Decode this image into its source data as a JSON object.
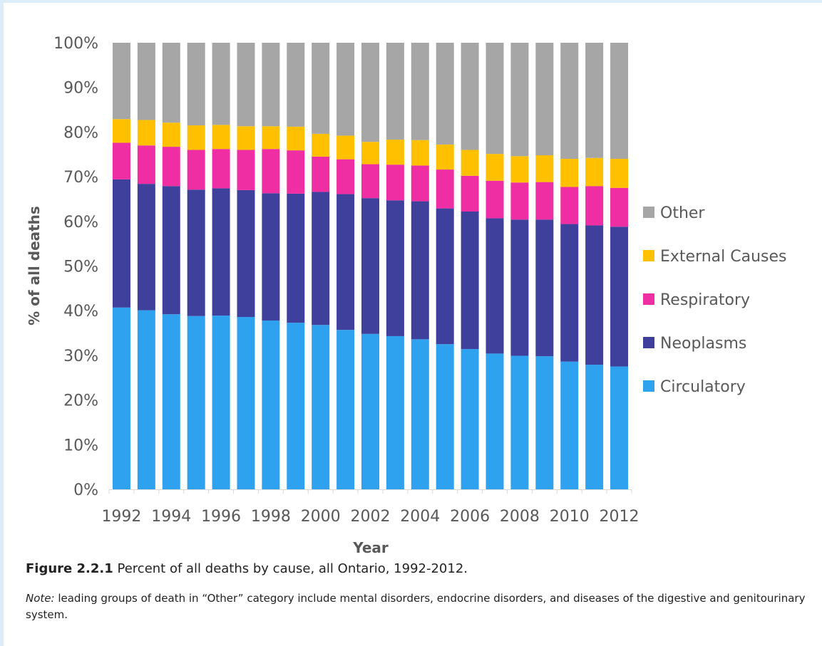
{
  "figure": {
    "label": "Figure 2.2.1",
    "caption": "Percent of all deaths by cause, all Ontario, 1992-2012.",
    "note_label": "Note:",
    "note_text": "leading groups of death in “Other” category include mental disorders, endocrine disorders, and diseases of the digestive and genitourinary system."
  },
  "chart_data": {
    "type": "bar",
    "stacked": true,
    "title": "",
    "xlabel": "Year",
    "ylabel": "% of all deaths",
    "ylim": [
      0,
      100
    ],
    "y_ticks": [
      "0%",
      "10%",
      "20%",
      "30%",
      "40%",
      "50%",
      "60%",
      "70%",
      "80%",
      "90%",
      "100%"
    ],
    "categories": [
      "1992",
      "1993",
      "1994",
      "1995",
      "1996",
      "1997",
      "1998",
      "1999",
      "2000",
      "2001",
      "2002",
      "2003",
      "2004",
      "2005",
      "2006",
      "2007",
      "2008",
      "2009",
      "2010",
      "2011",
      "2012"
    ],
    "x_tick_labels": [
      "1992",
      "1994",
      "1996",
      "1998",
      "2000",
      "2002",
      "2004",
      "2006",
      "2008",
      "2010",
      "2012"
    ],
    "legend_position": "right",
    "grid": false,
    "series": [
      {
        "name": "Circulatory",
        "color": "#2ea2ee",
        "values": [
          40.7,
          40.1,
          39.2,
          38.8,
          38.9,
          38.6,
          37.8,
          37.3,
          36.8,
          35.7,
          34.8,
          34.3,
          33.6,
          32.5,
          31.4,
          30.4,
          29.9,
          29.8,
          28.6,
          27.9,
          27.5
        ]
      },
      {
        "name": "Neoplasms",
        "color": "#3f3f9c",
        "values": [
          28.7,
          28.3,
          28.7,
          28.3,
          28.5,
          28.4,
          28.5,
          28.9,
          29.8,
          30.4,
          30.4,
          30.4,
          30.9,
          30.4,
          30.8,
          30.3,
          30.5,
          30.6,
          30.8,
          31.2,
          31.3
        ]
      },
      {
        "name": "Respiratory",
        "color": "#ee2ea2",
        "values": [
          8.2,
          8.6,
          8.8,
          8.9,
          8.8,
          9.0,
          9.9,
          9.7,
          7.9,
          7.8,
          7.6,
          8.0,
          8.0,
          8.7,
          8.0,
          8.4,
          8.3,
          8.4,
          8.3,
          8.8,
          8.7
        ]
      },
      {
        "name": "External Causes",
        "color": "#ffc000",
        "values": [
          5.3,
          5.7,
          5.4,
          5.5,
          5.4,
          5.3,
          5.1,
          5.3,
          5.1,
          5.3,
          5.0,
          5.6,
          5.7,
          5.6,
          5.8,
          6.0,
          5.9,
          6.0,
          6.3,
          6.3,
          6.5
        ]
      },
      {
        "name": "Other",
        "color": "#a6a6a6",
        "values": [
          17.1,
          17.3,
          17.9,
          18.5,
          18.4,
          18.7,
          18.7,
          18.8,
          20.4,
          20.8,
          22.2,
          21.7,
          21.8,
          22.8,
          24.0,
          24.9,
          25.4,
          25.2,
          26.0,
          25.8,
          26.0
        ]
      }
    ]
  }
}
